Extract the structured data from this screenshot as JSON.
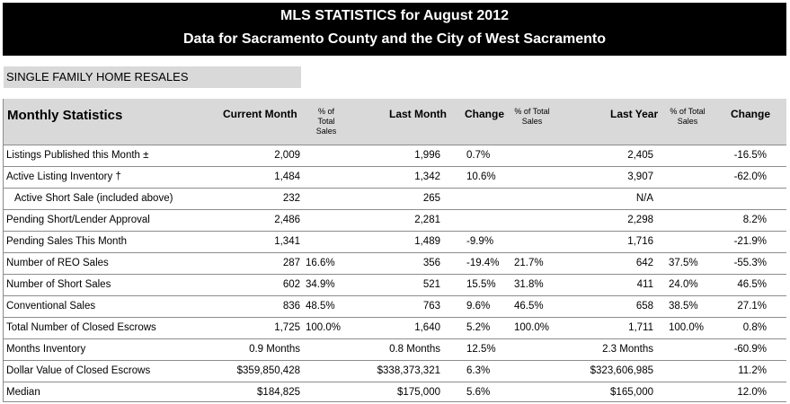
{
  "banner": {
    "line1": "MLS STATISTICS for August 2012",
    "line2": "Data for Sacramento County and the City of West Sacramento"
  },
  "section_label": "SINGLE FAMILY HOME RESALES",
  "header": {
    "title": "Monthly Statistics",
    "current_month": "Current Month",
    "pct1": [
      "% of",
      "Total",
      "Sales"
    ],
    "last_month": "Last Month",
    "change1": "Change",
    "pct2": [
      "% of  Total",
      "Sales"
    ],
    "last_year": "Last Year",
    "pct3": [
      "% of  Total",
      "Sales"
    ],
    "change2": "Change"
  },
  "rows": [
    {
      "label": "Listings Published this Month ±",
      "cur": "2,009",
      "curp": "",
      "last": "1,996",
      "chg1": "0.7%",
      "lastp": "",
      "ly": "2,405",
      "lyp": "",
      "chg2": "-16.5%"
    },
    {
      "label": "Active Listing Inventory †",
      "cur": "1,484",
      "curp": "",
      "last": "1,342",
      "chg1": "10.6%",
      "lastp": "",
      "ly": "3,907",
      "lyp": "",
      "chg2": "-62.0%"
    },
    {
      "label": "Active Short Sale (included above)",
      "cur": "232",
      "curp": "",
      "last": "265",
      "chg1": "",
      "lastp": "",
      "ly": "N/A",
      "lyp": "",
      "chg2": ""
    },
    {
      "label": "Pending Short/Lender Approval",
      "cur": "2,486",
      "curp": "",
      "last": "2,281",
      "chg1": "",
      "lastp": "",
      "ly": "2,298",
      "lyp": "",
      "chg2": "8.2%"
    },
    {
      "label": "Pending Sales This Month",
      "cur": "1,341",
      "curp": "",
      "last": "1,489",
      "chg1": "-9.9%",
      "lastp": "",
      "ly": "1,716",
      "lyp": "",
      "chg2": "-21.9%"
    },
    {
      "label": "Number of REO Sales",
      "cur": "287",
      "curp": "16.6%",
      "last": "356",
      "chg1": "-19.4%",
      "lastp": "21.7%",
      "ly": "642",
      "lyp": "37.5%",
      "chg2": "-55.3%"
    },
    {
      "label": "Number of Short Sales",
      "cur": "602",
      "curp": "34.9%",
      "last": "521",
      "chg1": "15.5%",
      "lastp": "31.8%",
      "ly": "411",
      "lyp": "24.0%",
      "chg2": "46.5%"
    },
    {
      "label": "Conventional Sales",
      "cur": "836",
      "curp": "48.5%",
      "last": "763",
      "chg1": "9.6%",
      "lastp": "46.5%",
      "ly": "658",
      "lyp": "38.5%",
      "chg2": "27.1%"
    },
    {
      "label": "Total Number of Closed Escrows",
      "cur": "1,725",
      "curp": "100.0%",
      "last": "1,640",
      "chg1": "5.2%",
      "lastp": "100.0%",
      "ly": "1,711",
      "lyp": "100.0%",
      "chg2": "0.8%"
    },
    {
      "label": "Months Inventory",
      "cur": "0.9 Months",
      "curp": "",
      "last": "0.8 Months",
      "chg1": "12.5%",
      "lastp": "",
      "ly": "2.3 Months",
      "lyp": "",
      "chg2": "-60.9%"
    },
    {
      "label": "Dollar Value of Closed Escrows",
      "cur": "$359,850,428",
      "curp": "",
      "last": "$338,373,321",
      "chg1": "6.3%",
      "lastp": "",
      "ly": "$323,606,985",
      "lyp": "",
      "chg2": "11.2%"
    },
    {
      "label": "Median",
      "cur": "$184,825",
      "curp": "",
      "last": "$175,000",
      "chg1": "5.6%",
      "lastp": "",
      "ly": "$165,000",
      "lyp": "",
      "chg2": "12.0%"
    }
  ]
}
